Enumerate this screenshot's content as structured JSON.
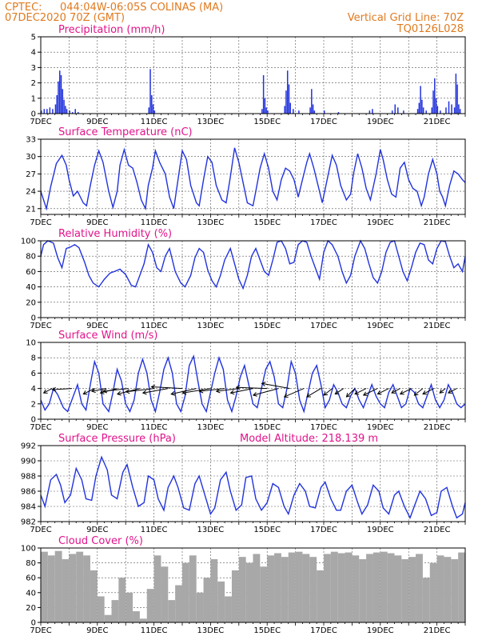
{
  "header": {
    "source": "CPTEC:",
    "location": "044:04W-06:05S   COLINAS (MA)",
    "run_time": "07DEC2020 70Z (GMT)",
    "grid_line": "Vertical Grid Line: 70Z",
    "model_code": "TQ0126L028"
  },
  "colors": {
    "header": "#e07a1f",
    "title": "#e0148c",
    "line": "#2233dd",
    "bar": "#2233dd",
    "cloud": "#a8a8a8"
  },
  "chart_data": [
    {
      "id": "precip",
      "type": "bar",
      "title": "Precipitation (mm/h)",
      "ylim": [
        0,
        5
      ],
      "yticks": [
        0,
        1,
        2,
        3,
        4,
        5
      ],
      "xlim": [
        7,
        22
      ],
      "xticks": [
        "7DEC",
        "9DEC",
        "11DEC",
        "13DEC",
        "15DEC",
        "17DEC",
        "19DEC",
        "21DEC"
      ],
      "x": [
        7.0,
        7.1,
        7.2,
        7.3,
        7.4,
        7.5,
        7.55,
        7.6,
        7.65,
        7.7,
        7.75,
        7.8,
        7.85,
        7.9,
        8.0,
        8.1,
        8.2,
        8.3,
        10.8,
        10.85,
        10.9,
        10.95,
        11.0,
        14.8,
        14.85,
        14.9,
        14.95,
        15.0,
        15.6,
        15.65,
        15.7,
        15.75,
        15.8,
        15.9,
        16.1,
        16.5,
        16.55,
        16.6,
        16.65,
        17.0,
        17.5,
        18.6,
        18.7,
        19.4,
        19.5,
        19.6,
        19.8,
        20.3,
        20.35,
        20.4,
        20.45,
        20.5,
        20.6,
        20.8,
        20.85,
        20.9,
        20.95,
        21.0,
        21.1,
        21.3,
        21.4,
        21.5,
        21.6,
        21.65,
        21.7,
        21.75,
        21.8
      ],
      "values": [
        0.2,
        0.3,
        0.3,
        0.4,
        0.3,
        0.6,
        1.2,
        2.1,
        2.8,
        2.5,
        1.6,
        0.9,
        0.5,
        0.3,
        0.2,
        0.1,
        0.3,
        0.1,
        0.4,
        2.9,
        1.2,
        0.6,
        0.2,
        0.3,
        2.5,
        1.0,
        0.4,
        0.2,
        0.5,
        1.5,
        2.8,
        1.9,
        0.7,
        0.3,
        0.2,
        0.4,
        1.6,
        0.6,
        0.2,
        0.2,
        0.1,
        0.2,
        0.3,
        0.2,
        0.6,
        0.4,
        0.2,
        0.3,
        0.7,
        1.8,
        0.9,
        0.4,
        0.2,
        0.4,
        1.5,
        2.3,
        1.0,
        0.5,
        0.2,
        0.4,
        0.8,
        0.6,
        0.4,
        2.6,
        1.9,
        0.6,
        0.3
      ]
    },
    {
      "id": "temp",
      "type": "line",
      "title": "Surface Temperature (nC)",
      "ylim": [
        20,
        33
      ],
      "yticks": [
        21,
        24,
        27,
        30,
        33
      ],
      "xlim": [
        7,
        22
      ],
      "xticks": [
        "7DEC",
        "9DEC",
        "11DEC",
        "13DEC",
        "15DEC",
        "17DEC",
        "19DEC",
        "21DEC"
      ],
      "x": [
        7.0,
        7.1,
        7.2,
        7.35,
        7.55,
        7.75,
        7.9,
        8.0,
        8.15,
        8.3,
        8.5,
        8.62,
        8.75,
        8.9,
        9.05,
        9.2,
        9.4,
        9.55,
        9.7,
        9.8,
        9.95,
        10.1,
        10.25,
        10.4,
        10.55,
        10.7,
        10.8,
        10.95,
        11.05,
        11.2,
        11.4,
        11.55,
        11.7,
        11.85,
        12.0,
        12.15,
        12.3,
        12.5,
        12.6,
        12.75,
        12.9,
        13.05,
        13.2,
        13.4,
        13.55,
        13.7,
        13.85,
        14.0,
        14.15,
        14.3,
        14.5,
        14.6,
        14.75,
        14.9,
        15.05,
        15.2,
        15.35,
        15.5,
        15.65,
        15.8,
        15.95,
        16.1,
        16.25,
        16.4,
        16.5,
        16.65,
        16.8,
        16.95,
        17.1,
        17.3,
        17.45,
        17.6,
        17.8,
        17.95,
        18.05,
        18.2,
        18.35,
        18.5,
        18.65,
        18.85,
        19.0,
        19.1,
        19.25,
        19.4,
        19.55,
        19.7,
        19.85,
        20.0,
        20.15,
        20.3,
        20.45,
        20.55,
        20.7,
        20.85,
        21.0,
        21.1,
        21.2,
        21.3,
        21.45,
        21.6,
        21.75,
        21.9,
        22.0
      ],
      "values": [
        24.0,
        22.5,
        21.0,
        24.8,
        28.8,
        30.2,
        28.5,
        26.0,
        23.2,
        24.0,
        22.0,
        21.5,
        25.0,
        28.5,
        31.0,
        29.0,
        24.0,
        21.2,
        24.0,
        28.5,
        31.2,
        28.5,
        28.0,
        25.5,
        22.5,
        21.0,
        25.0,
        28.0,
        31.0,
        29.0,
        27.0,
        23.0,
        21.0,
        26.0,
        31.0,
        29.5,
        25.0,
        22.0,
        21.5,
        26.0,
        30.0,
        29.0,
        25.0,
        22.5,
        22.0,
        26.5,
        31.5,
        29.0,
        25.5,
        22.0,
        21.5,
        24.0,
        28.0,
        30.5,
        28.0,
        24.0,
        22.5,
        26.0,
        28.0,
        27.5,
        26.0,
        23.0,
        26.0,
        29.0,
        30.5,
        28.0,
        25.0,
        22.0,
        25.5,
        30.2,
        28.5,
        25.0,
        22.5,
        23.5,
        27.0,
        30.5,
        28.0,
        24.5,
        22.5,
        27.0,
        31.2,
        29.5,
        26.0,
        23.5,
        23.0,
        28.0,
        29.0,
        26.0,
        24.5,
        24.0,
        21.5,
        23.0,
        27.0,
        29.5,
        27.0,
        24.0,
        23.0,
        21.5,
        25.0,
        27.5,
        27.0,
        26.0,
        25.5
      ]
    },
    {
      "id": "rh",
      "type": "line",
      "title": "Relative Humidity (%)",
      "ylim": [
        0,
        100
      ],
      "yticks": [
        0,
        20,
        40,
        60,
        80,
        100
      ],
      "xlim": [
        7,
        22
      ],
      "xticks": [
        "7DEC",
        "9DEC",
        "11DEC",
        "13DEC",
        "15DEC",
        "17DEC",
        "19DEC",
        "21DEC"
      ],
      "x": [
        7.0,
        7.1,
        7.25,
        7.45,
        7.6,
        7.75,
        7.9,
        8.05,
        8.2,
        8.35,
        8.55,
        8.7,
        8.85,
        9.05,
        9.25,
        9.45,
        9.6,
        9.8,
        10.0,
        10.2,
        10.35,
        10.5,
        10.65,
        10.8,
        10.95,
        11.1,
        11.25,
        11.4,
        11.55,
        11.75,
        11.95,
        12.1,
        12.3,
        12.45,
        12.6,
        12.75,
        12.9,
        13.05,
        13.2,
        13.35,
        13.5,
        13.7,
        13.85,
        14.0,
        14.15,
        14.3,
        14.45,
        14.6,
        14.75,
        14.9,
        15.05,
        15.2,
        15.35,
        15.5,
        15.65,
        15.8,
        15.95,
        16.1,
        16.25,
        16.4,
        16.55,
        16.7,
        16.85,
        17.0,
        17.15,
        17.3,
        17.5,
        17.65,
        17.8,
        17.95,
        18.1,
        18.3,
        18.45,
        18.6,
        18.75,
        18.9,
        19.05,
        19.2,
        19.35,
        19.5,
        19.65,
        19.8,
        19.95,
        20.1,
        20.25,
        20.4,
        20.55,
        20.7,
        20.85,
        21.0,
        21.15,
        21.3,
        21.45,
        21.6,
        21.75,
        21.9,
        22.0
      ],
      "values": [
        80,
        95,
        100,
        97,
        78,
        65,
        90,
        92,
        95,
        91,
        72,
        55,
        45,
        40,
        50,
        58,
        60,
        63,
        56,
        42,
        40,
        55,
        70,
        95,
        85,
        65,
        60,
        80,
        90,
        60,
        45,
        40,
        55,
        78,
        90,
        85,
        62,
        48,
        40,
        55,
        75,
        90,
        70,
        50,
        38,
        55,
        80,
        90,
        75,
        60,
        55,
        75,
        98,
        100,
        90,
        70,
        72,
        95,
        100,
        98,
        80,
        65,
        50,
        85,
        100,
        95,
        80,
        60,
        45,
        55,
        80,
        100,
        90,
        70,
        52,
        45,
        60,
        85,
        98,
        100,
        80,
        60,
        48,
        65,
        85,
        97,
        95,
        75,
        70,
        90,
        100,
        99,
        80,
        65,
        70,
        60,
        80
      ]
    },
    {
      "id": "wind",
      "type": "line",
      "title": "Surface Wind (m/s)",
      "ylim": [
        0,
        10
      ],
      "yticks": [
        0,
        2,
        4,
        6,
        8,
        10
      ],
      "xlim": [
        7,
        22
      ],
      "xticks": [
        "7DEC",
        "9DEC",
        "11DEC",
        "13DEC",
        "15DEC",
        "17DEC",
        "19DEC",
        "21DEC"
      ],
      "x": [
        7.0,
        7.15,
        7.3,
        7.45,
        7.6,
        7.8,
        7.95,
        8.1,
        8.3,
        8.45,
        8.6,
        8.75,
        8.9,
        9.05,
        9.2,
        9.4,
        9.55,
        9.7,
        9.85,
        10.0,
        10.15,
        10.3,
        10.45,
        10.6,
        10.75,
        10.9,
        11.05,
        11.2,
        11.35,
        11.5,
        11.65,
        11.8,
        11.95,
        12.1,
        12.25,
        12.4,
        12.55,
        12.7,
        12.85,
        13.0,
        13.15,
        13.3,
        13.45,
        13.6,
        13.75,
        13.9,
        14.05,
        14.2,
        14.35,
        14.5,
        14.65,
        14.8,
        14.95,
        15.1,
        15.25,
        15.4,
        15.55,
        15.7,
        15.85,
        16.0,
        16.15,
        16.3,
        16.45,
        16.6,
        16.75,
        16.9,
        17.05,
        17.2,
        17.35,
        17.5,
        17.65,
        17.8,
        17.95,
        18.1,
        18.25,
        18.4,
        18.55,
        18.7,
        18.85,
        19.0,
        19.15,
        19.3,
        19.45,
        19.6,
        19.75,
        19.9,
        20.05,
        20.2,
        20.35,
        20.5,
        20.65,
        20.8,
        20.95,
        21.1,
        21.25,
        21.4,
        21.55,
        21.7,
        21.85,
        22.0
      ],
      "values": [
        2.5,
        1.2,
        2.0,
        4.0,
        3.2,
        1.5,
        1.0,
        2.5,
        4.5,
        2.0,
        1.2,
        4.5,
        7.5,
        6.0,
        2.0,
        1.0,
        3.5,
        6.5,
        5.0,
        2.0,
        1.0,
        2.5,
        6.0,
        7.8,
        6.0,
        2.5,
        1.0,
        3.5,
        6.5,
        8.0,
        6.0,
        2.0,
        1.0,
        3.0,
        7.0,
        8.2,
        5.0,
        2.0,
        1.0,
        3.5,
        6.0,
        8.0,
        6.5,
        2.5,
        1.0,
        3.0,
        5.5,
        7.0,
        4.5,
        2.0,
        1.5,
        4.0,
        6.5,
        7.5,
        5.5,
        2.0,
        1.5,
        4.0,
        7.5,
        6.0,
        2.5,
        1.0,
        3.5,
        6.0,
        7.0,
        4.5,
        1.5,
        2.5,
        4.5,
        3.5,
        2.0,
        1.5,
        3.0,
        4.0,
        2.5,
        1.5,
        3.0,
        4.5,
        3.0,
        2.0,
        1.5,
        3.5,
        4.5,
        3.0,
        1.5,
        2.0,
        4.0,
        3.5,
        2.0,
        1.5,
        3.0,
        4.5,
        2.5,
        1.5,
        2.5,
        4.5,
        3.5,
        2.0,
        1.5,
        2.0
      ],
      "arrows_x": [
        7.4,
        8.1,
        8.9,
        9.3,
        9.7,
        10.1,
        10.5,
        11.0,
        11.5,
        12.0,
        12.5,
        13.0,
        13.5,
        14.0,
        14.5,
        15.0,
        15.4,
        15.8,
        16.3,
        16.9,
        17.3,
        17.7,
        18.1,
        18.5,
        18.9,
        19.3,
        19.7,
        20.1,
        20.5,
        20.9,
        21.3,
        21.7
      ],
      "arrows_u": [
        -1.5,
        -3.5,
        -2.0,
        -2.5,
        -3.0,
        -4.5,
        -4.0,
        -5.0,
        -4.5,
        -5.5,
        -4.5,
        -5.0,
        -4.5,
        -4.0,
        -4.0,
        -5.5,
        -4.5,
        -5.0,
        -3.5,
        -2.5,
        -1.5,
        -1.5,
        -1.5,
        -2.0,
        -2.5,
        -2.0,
        -1.5,
        -2.0,
        -1.5,
        -2.0,
        -1.0,
        -1.5
      ],
      "arrows_v": [
        -0.8,
        -0.2,
        -1.0,
        -0.5,
        -0.8,
        -0.5,
        -1.0,
        -0.6,
        -0.8,
        0.3,
        -1.0,
        -0.8,
        -0.5,
        -0.5,
        -0.8,
        0.2,
        -1.2,
        0.9,
        -1.5,
        -1.5,
        -1.2,
        -1.0,
        -1.5,
        -1.0,
        -1.2,
        -1.0,
        -0.8,
        -1.0,
        -1.2,
        -1.0,
        -0.8,
        -0.8
      ]
    },
    {
      "id": "press",
      "type": "line",
      "title": "Surface Pressure (hPa)",
      "annotation": "Model Altitude: 218.139  m",
      "ylim": [
        982,
        992
      ],
      "yticks": [
        982,
        984,
        986,
        988,
        990,
        992
      ],
      "xlim": [
        7,
        22
      ],
      "xticks": [
        "7DEC",
        "9DEC",
        "11DEC",
        "13DEC",
        "15DEC",
        "17DEC",
        "19DEC",
        "21DEC"
      ],
      "x": [
        7.0,
        7.15,
        7.35,
        7.55,
        7.7,
        7.85,
        8.05,
        8.25,
        8.45,
        8.6,
        8.8,
        8.95,
        9.15,
        9.35,
        9.5,
        9.7,
        9.9,
        10.05,
        10.25,
        10.45,
        10.65,
        10.8,
        11.0,
        11.15,
        11.35,
        11.5,
        11.7,
        11.85,
        12.05,
        12.25,
        12.45,
        12.6,
        12.8,
        13.0,
        13.15,
        13.35,
        13.55,
        13.7,
        13.9,
        14.1,
        14.25,
        14.45,
        14.6,
        14.8,
        15.0,
        15.2,
        15.4,
        15.6,
        15.75,
        15.95,
        16.15,
        16.35,
        16.5,
        16.7,
        16.9,
        17.05,
        17.25,
        17.45,
        17.6,
        17.8,
        18.0,
        18.2,
        18.35,
        18.55,
        18.75,
        18.95,
        19.1,
        19.3,
        19.5,
        19.65,
        19.85,
        20.05,
        20.25,
        20.4,
        20.6,
        20.8,
        21.0,
        21.15,
        21.35,
        21.55,
        21.7,
        21.9,
        22.0
      ],
      "values": [
        985.5,
        984.0,
        987.5,
        988.2,
        986.8,
        984.5,
        985.5,
        989.0,
        987.5,
        985.0,
        984.8,
        988.0,
        990.5,
        988.8,
        985.5,
        985.0,
        988.5,
        989.5,
        986.5,
        984.0,
        984.5,
        988.0,
        987.5,
        985.0,
        983.5,
        986.5,
        988.0,
        986.5,
        983.8,
        983.5,
        987.0,
        988.0,
        985.5,
        983.0,
        983.8,
        987.5,
        988.5,
        986.0,
        983.5,
        984.2,
        987.8,
        988.0,
        985.0,
        983.5,
        984.5,
        987.0,
        986.5,
        984.0,
        983.0,
        985.5,
        987.0,
        986.0,
        984.0,
        983.8,
        986.5,
        987.2,
        985.0,
        983.5,
        983.5,
        986.0,
        986.8,
        984.5,
        983.0,
        984.2,
        986.8,
        986.0,
        983.8,
        983.0,
        985.5,
        986.0,
        984.0,
        982.5,
        984.5,
        986.0,
        985.0,
        982.8,
        983.2,
        986.0,
        986.5,
        984.0,
        982.5,
        983.0,
        984.5
      ]
    },
    {
      "id": "cloud",
      "type": "bar",
      "title": "Cloud Cover (%)",
      "ylim": [
        0,
        100
      ],
      "yticks": [
        0,
        20,
        40,
        60,
        80,
        100
      ],
      "xlim": [
        7,
        22
      ],
      "xticks": [
        "7DEC",
        "9DEC",
        "11DEC",
        "13DEC",
        "15DEC",
        "17DEC",
        "19DEC",
        "21DEC"
      ],
      "x": [
        7.0,
        7.25,
        7.5,
        7.75,
        8.0,
        8.25,
        8.5,
        8.75,
        9.0,
        9.25,
        9.5,
        9.75,
        10.0,
        10.25,
        10.5,
        10.75,
        11.0,
        11.25,
        11.5,
        11.75,
        12.0,
        12.25,
        12.5,
        12.75,
        13.0,
        13.25,
        13.5,
        13.75,
        14.0,
        14.25,
        14.5,
        14.75,
        15.0,
        15.25,
        15.5,
        15.75,
        16.0,
        16.25,
        16.5,
        16.75,
        17.0,
        17.25,
        17.5,
        17.75,
        18.0,
        18.25,
        18.5,
        18.75,
        19.0,
        19.25,
        19.5,
        19.75,
        20.0,
        20.25,
        20.5,
        20.75,
        21.0,
        21.25,
        21.5,
        21.75
      ],
      "values": [
        95,
        90,
        96,
        85,
        92,
        95,
        90,
        70,
        35,
        10,
        30,
        60,
        40,
        15,
        5,
        45,
        90,
        75,
        30,
        50,
        80,
        90,
        40,
        60,
        85,
        55,
        35,
        70,
        88,
        80,
        92,
        75,
        90,
        93,
        88,
        94,
        95,
        92,
        88,
        70,
        92,
        95,
        93,
        94,
        90,
        85,
        92,
        94,
        95,
        93,
        90,
        85,
        88,
        92,
        60,
        80,
        90,
        88,
        85,
        94
      ]
    }
  ]
}
